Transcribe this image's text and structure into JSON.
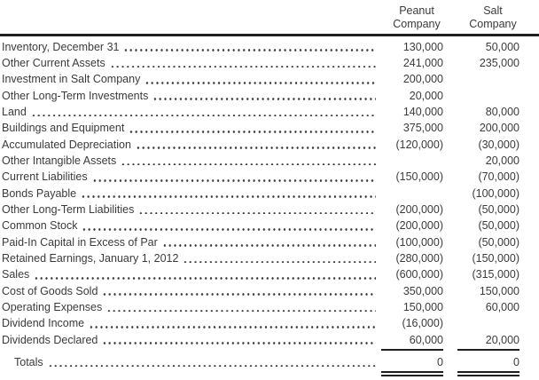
{
  "header": {
    "columns": [
      {
        "id": "peanut",
        "line1": "Peanut",
        "line2": "Company"
      },
      {
        "id": "salt",
        "line1": "Salt",
        "line2": "Company"
      }
    ]
  },
  "table": {
    "rows": [
      {
        "label": "Inventory, December 31",
        "peanut": "130,000",
        "salt": "50,000"
      },
      {
        "label": "Other Current Assets",
        "peanut": "241,000",
        "salt": "235,000"
      },
      {
        "label": "Investment in Salt Company",
        "peanut": "200,000",
        "salt": ""
      },
      {
        "label": "Other Long-Term Investments",
        "peanut": "20,000",
        "salt": ""
      },
      {
        "label": "Land",
        "peanut": "140,000",
        "salt": "80,000"
      },
      {
        "label": "Buildings and Equipment",
        "peanut": "375,000",
        "salt": "200,000"
      },
      {
        "label": "Accumulated Depreciation",
        "peanut": "(120,000)",
        "salt": "(30,000)"
      },
      {
        "label": "Other Intangible Assets",
        "peanut": "",
        "salt": "20,000"
      },
      {
        "label": "Current Liabilities",
        "peanut": "(150,000)",
        "salt": "(70,000)"
      },
      {
        "label": "Bonds Payable",
        "peanut": "",
        "salt": "(100,000)"
      },
      {
        "label": "Other Long-Term Liabilities",
        "peanut": "(200,000)",
        "salt": "(50,000)"
      },
      {
        "label": "Common Stock",
        "peanut": "(200,000)",
        "salt": "(50,000)"
      },
      {
        "label": "Paid-In Capital in Excess of Par",
        "peanut": "(100,000)",
        "salt": "(50,000)"
      },
      {
        "label": "Retained Earnings, January 1, 2012",
        "peanut": "(280,000)",
        "salt": "(150,000)"
      },
      {
        "label": "Sales",
        "peanut": "(600,000)",
        "salt": "(315,000)"
      },
      {
        "label": "Cost of Goods Sold",
        "peanut": "350,000",
        "salt": "150,000"
      },
      {
        "label": "Operating Expenses",
        "peanut": "150,000",
        "salt": "60,000"
      },
      {
        "label": "Dividend Income",
        "peanut": "(16,000)",
        "salt": ""
      },
      {
        "label": "Dividends Declared",
        "peanut": "60,000",
        "salt": "20,000",
        "underline": "single"
      },
      {
        "label": "Totals",
        "peanut": "0",
        "salt": "0",
        "underline": "double",
        "indent": true,
        "spacer_before": true
      }
    ]
  },
  "colors": {
    "text": "#3b3b3b",
    "rule": "#1f1f1f",
    "background": "#ffffff"
  }
}
